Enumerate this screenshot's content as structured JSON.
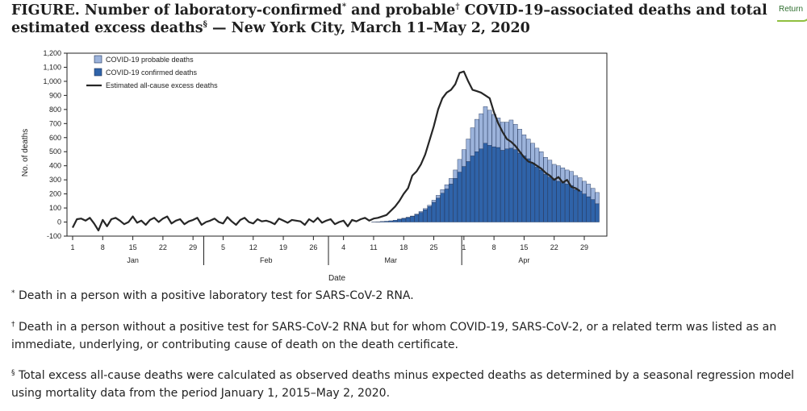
{
  "figure": {
    "lead": "FIGURE.",
    "title_a": " Number of laboratory-confirmed",
    "mark_a": "*",
    "title_b": " and probable",
    "mark_b": "†",
    "title_c": " COVID-19–associated deaths and total estimated excess deaths",
    "mark_c": "§",
    "title_d": " — New York City, March 11–May 2, 2020"
  },
  "return_link": "Return",
  "footnotes": [
    {
      "mark": "*",
      "text": " Death in a person with a positive laboratory test for SARS-CoV-2 RNA."
    },
    {
      "mark": "†",
      "text": " Death in a person without a positive test for SARS-CoV-2 RNA but for whom COVID-19, SARS-CoV-2, or a related term was listed as an immediate, underlying, or contributing cause of death on the death certificate."
    },
    {
      "mark": "§",
      "text": " Total excess all-cause deaths were calculated as observed deaths minus expected deaths as determined by a seasonal regression model using mortality data from the period January 1, 2015–May 2, 2020."
    }
  ],
  "colors": {
    "confirmed": "#2f63a9",
    "probable": "#9cb3db",
    "excess_line": "#262626",
    "bar_edge": "#1c2f55"
  },
  "chart_data": {
    "type": "bar",
    "ylabel": "No. of deaths",
    "xlabel": "Date",
    "ylim": [
      -100,
      1200
    ],
    "yticks": [
      -100,
      0,
      100,
      200,
      300,
      400,
      500,
      600,
      700,
      800,
      900,
      1000,
      1100,
      1200
    ],
    "ytick_labels": [
      "-100",
      "0",
      "100",
      "200",
      "300",
      "400",
      "500",
      "600",
      "700",
      "800",
      "900",
      "1,000",
      "1,100",
      "1,200"
    ],
    "x_start": "2020-01-01",
    "x_end": "2020-05-02",
    "xticks": [
      {
        "date": "2020-01-01",
        "label": "1"
      },
      {
        "date": "2020-01-08",
        "label": "8"
      },
      {
        "date": "2020-01-15",
        "label": "15"
      },
      {
        "date": "2020-01-22",
        "label": "22"
      },
      {
        "date": "2020-01-29",
        "label": "29"
      },
      {
        "date": "2020-02-05",
        "label": "5"
      },
      {
        "date": "2020-02-12",
        "label": "12"
      },
      {
        "date": "2020-02-19",
        "label": "19"
      },
      {
        "date": "2020-02-26",
        "label": "26"
      },
      {
        "date": "2020-03-04",
        "label": "4"
      },
      {
        "date": "2020-03-11",
        "label": "11"
      },
      {
        "date": "2020-03-18",
        "label": "18"
      },
      {
        "date": "2020-03-25",
        "label": "25"
      },
      {
        "date": "2020-04-01",
        "label": "1"
      },
      {
        "date": "2020-04-08",
        "label": "8"
      },
      {
        "date": "2020-04-15",
        "label": "15"
      },
      {
        "date": "2020-04-22",
        "label": "22"
      },
      {
        "date": "2020-04-29",
        "label": "29"
      }
    ],
    "month_labels": [
      {
        "label": "Jan",
        "date": "2020-01-15"
      },
      {
        "label": "Feb",
        "date": "2020-02-15"
      },
      {
        "label": "Mar",
        "date": "2020-03-15"
      },
      {
        "label": "Apr",
        "date": "2020-04-15"
      }
    ],
    "month_boundaries": [
      "2020-02-01",
      "2020-03-01",
      "2020-04-01"
    ],
    "legend_position": "top-left",
    "grid": false,
    "bar_dates": [
      "2020-03-11",
      "2020-03-12",
      "2020-03-13",
      "2020-03-14",
      "2020-03-15",
      "2020-03-16",
      "2020-03-17",
      "2020-03-18",
      "2020-03-19",
      "2020-03-20",
      "2020-03-21",
      "2020-03-22",
      "2020-03-23",
      "2020-03-24",
      "2020-03-25",
      "2020-03-26",
      "2020-03-27",
      "2020-03-28",
      "2020-03-29",
      "2020-03-30",
      "2020-03-31",
      "2020-04-01",
      "2020-04-02",
      "2020-04-03",
      "2020-04-04",
      "2020-04-05",
      "2020-04-06",
      "2020-04-07",
      "2020-04-08",
      "2020-04-09",
      "2020-04-10",
      "2020-04-11",
      "2020-04-12",
      "2020-04-13",
      "2020-04-14",
      "2020-04-15",
      "2020-04-16",
      "2020-04-17",
      "2020-04-18",
      "2020-04-19",
      "2020-04-20",
      "2020-04-21",
      "2020-04-22",
      "2020-04-23",
      "2020-04-24",
      "2020-04-25",
      "2020-04-26",
      "2020-04-27",
      "2020-04-28",
      "2020-04-29",
      "2020-04-30",
      "2020-05-01",
      "2020-05-02"
    ],
    "series": [
      {
        "name": "COVID-19 confirmed deaths",
        "values": [
          1,
          2,
          4,
          6,
          9,
          13,
          20,
          26,
          32,
          40,
          52,
          68,
          88,
          110,
          140,
          170,
          205,
          235,
          270,
          310,
          355,
          395,
          430,
          470,
          500,
          520,
          560,
          545,
          535,
          530,
          510,
          520,
          525,
          515,
          490,
          470,
          450,
          420,
          390,
          370,
          340,
          320,
          300,
          290,
          280,
          270,
          260,
          230,
          220,
          200,
          180,
          160,
          130
        ]
      },
      {
        "name": "COVID-19 probable deaths",
        "values": [
          0,
          0,
          0,
          0,
          0,
          0,
          1,
          1,
          2,
          3,
          5,
          7,
          8,
          10,
          15,
          20,
          25,
          30,
          40,
          60,
          90,
          120,
          160,
          200,
          230,
          250,
          260,
          250,
          230,
          210,
          200,
          190,
          200,
          180,
          170,
          150,
          140,
          140,
          135,
          130,
          120,
          120,
          110,
          110,
          105,
          100,
          100,
          100,
          95,
          90,
          90,
          80,
          80
        ]
      }
    ],
    "line": {
      "name": "Estimated all-cause excess deaths",
      "values": [
        -40,
        20,
        25,
        10,
        30,
        -10,
        -60,
        15,
        -30,
        20,
        30,
        10,
        -15,
        0,
        40,
        -5,
        10,
        -20,
        15,
        30,
        0,
        25,
        40,
        -10,
        10,
        20,
        -15,
        5,
        15,
        30,
        -20,
        0,
        10,
        25,
        0,
        -10,
        35,
        5,
        -20,
        15,
        30,
        0,
        -10,
        20,
        5,
        10,
        0,
        -15,
        25,
        10,
        -5,
        15,
        10,
        5,
        -20,
        20,
        0,
        30,
        -5,
        10,
        20,
        -15,
        0,
        10,
        -30,
        15,
        5,
        20,
        30,
        10,
        25,
        30,
        40,
        50,
        80,
        110,
        150,
        200,
        240,
        330,
        360,
        410,
        480,
        580,
        680,
        800,
        880,
        920,
        940,
        980,
        1060,
        1070,
        1000,
        940,
        930,
        920,
        900,
        880,
        780,
        700,
        640,
        590,
        570,
        540,
        500,
        460,
        430,
        420,
        400,
        380,
        350,
        330,
        300,
        320,
        280,
        300,
        250,
        240,
        220
      ]
    },
    "line_start": "2020-01-01"
  }
}
